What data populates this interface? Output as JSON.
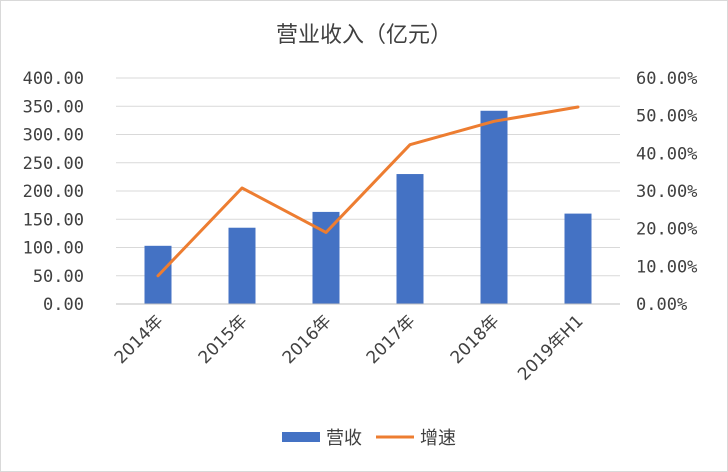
{
  "chart_data": {
    "type": "bar+line",
    "title": "营业收入（亿元）",
    "categories": [
      "2014年",
      "2015年",
      "2016年",
      "2017年",
      "2018年",
      "2019年H1"
    ],
    "series": [
      {
        "name": "营收",
        "type": "bar",
        "axis": "left",
        "color": "#4472C4",
        "values": [
          103,
          135,
          163,
          230,
          342,
          160
        ]
      },
      {
        "name": "增速",
        "type": "line",
        "axis": "right",
        "color": "#ED7D31",
        "values": [
          7.5,
          30.8,
          19.0,
          42.3,
          48.5,
          52.3
        ]
      }
    ],
    "y_left": {
      "lim": [
        0,
        400
      ],
      "ticks": [
        0,
        50,
        100,
        150,
        200,
        250,
        300,
        350,
        400
      ],
      "tick_labels": [
        "0.00",
        "50.00",
        "100.00",
        "150.00",
        "200.00",
        "250.00",
        "300.00",
        "350.00",
        "400.00"
      ]
    },
    "y_right": {
      "lim": [
        0,
        60
      ],
      "ticks": [
        0,
        10,
        20,
        30,
        40,
        50,
        60
      ],
      "tick_labels": [
        "0.00%",
        "10.00%",
        "20.00%",
        "30.00%",
        "40.00%",
        "50.00%",
        "60.00%"
      ]
    },
    "grid": true,
    "legend_position": "bottom"
  }
}
